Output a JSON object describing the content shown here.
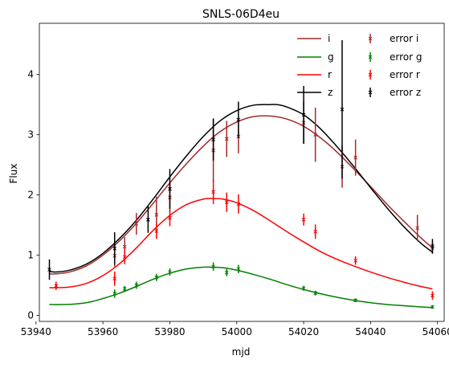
{
  "chart_data": {
    "type": "line",
    "title": "SNLS-06D4eu",
    "xlabel": "mjd",
    "ylabel": "Flux",
    "xlim": [
      53941,
      54062
    ],
    "ylim": [
      -0.1,
      4.85
    ],
    "xticks": [
      53940,
      53960,
      53980,
      54000,
      54020,
      54040,
      54060
    ],
    "yticks": [
      0,
      1,
      2,
      3,
      4
    ],
    "grid": false,
    "legend": "top-right",
    "series": [
      {
        "name": "i",
        "color": "#a52a2a",
        "x": [
          53944,
          53946,
          53950,
          53955,
          53960,
          53965,
          53970,
          53975,
          53980,
          53985,
          53990,
          53995,
          54000,
          54005,
          54010,
          54015,
          54020,
          54025,
          54030,
          54035,
          54040,
          54045,
          54050,
          54055,
          54058.5
        ],
        "y": [
          0.69,
          0.69,
          0.72,
          0.82,
          1.0,
          1.24,
          1.53,
          1.86,
          2.2,
          2.52,
          2.81,
          3.05,
          3.21,
          3.3,
          3.31,
          3.26,
          3.14,
          2.95,
          2.71,
          2.43,
          2.14,
          1.84,
          1.56,
          1.29,
          1.12
        ]
      },
      {
        "name": "g",
        "color": "#008000",
        "x": [
          53944,
          53948,
          53952,
          53956,
          53960,
          53965,
          53970,
          53975,
          53980,
          53985,
          53990,
          53993,
          53996,
          54000,
          54005,
          54010,
          54015,
          54020,
          54025,
          54030,
          54035,
          54040,
          54045,
          54050,
          54055,
          54058.5
        ],
        "y": [
          0.18,
          0.18,
          0.19,
          0.22,
          0.28,
          0.37,
          0.48,
          0.6,
          0.7,
          0.77,
          0.8,
          0.8,
          0.79,
          0.75,
          0.68,
          0.6,
          0.51,
          0.43,
          0.36,
          0.3,
          0.25,
          0.21,
          0.18,
          0.16,
          0.14,
          0.13
        ]
      },
      {
        "name": "r",
        "color": "#ff0000",
        "x": [
          53944,
          53946,
          53950,
          53955,
          53960,
          53965,
          53970,
          53975,
          53980,
          53985,
          53990,
          53993,
          53996,
          54000,
          54005,
          54010,
          54015,
          54020,
          54025,
          54030,
          54035,
          54040,
          54045,
          54050,
          54055,
          54058.5
        ],
        "y": [
          0.46,
          0.46,
          0.47,
          0.53,
          0.66,
          0.86,
          1.12,
          1.41,
          1.66,
          1.84,
          1.93,
          1.94,
          1.93,
          1.87,
          1.74,
          1.57,
          1.39,
          1.22,
          1.06,
          0.93,
          0.82,
          0.72,
          0.63,
          0.55,
          0.48,
          0.44
        ]
      },
      {
        "name": "z",
        "color": "#000000",
        "x": [
          53944,
          53946,
          53950,
          53955,
          53960,
          53965,
          53970,
          53975,
          53980,
          53985,
          53990,
          53995,
          54000,
          54005,
          54010,
          54012,
          54015,
          54020,
          54025,
          54030,
          54035,
          54040,
          54045,
          54050,
          54055,
          54058.5
        ],
        "y": [
          0.73,
          0.72,
          0.75,
          0.85,
          1.03,
          1.28,
          1.58,
          1.93,
          2.3,
          2.65,
          2.97,
          3.23,
          3.4,
          3.49,
          3.5,
          3.5,
          3.46,
          3.33,
          3.1,
          2.8,
          2.47,
          2.12,
          1.78,
          1.47,
          1.2,
          1.05
        ]
      }
    ],
    "error_series": [
      {
        "name": "error i",
        "color": "#a52a2a",
        "points": [
          {
            "x": 53963.5,
            "y": 0.99,
            "err": 0.18
          },
          {
            "x": 53966.5,
            "y": 1.14,
            "err": 0.16
          },
          {
            "x": 53970,
            "y": 1.52,
            "err": 0.18
          },
          {
            "x": 53976,
            "y": 1.67,
            "err": 0.3
          },
          {
            "x": 53980,
            "y": 1.96,
            "err": 0.24
          },
          {
            "x": 53993,
            "y": 2.74,
            "err": 0.52
          },
          {
            "x": 53997,
            "y": 2.93,
            "err": 0.3
          },
          {
            "x": 54000.5,
            "y": 2.97,
            "err": 0.28
          },
          {
            "x": 54020,
            "y": 3.2,
            "err": 0.35
          },
          {
            "x": 54023.5,
            "y": 3.0,
            "err": 0.45
          },
          {
            "x": 54031.5,
            "y": 2.47,
            "err": 0.35
          },
          {
            "x": 54035.5,
            "y": 2.62,
            "err": 0.3
          },
          {
            "x": 54054,
            "y": 1.45,
            "err": 0.22
          },
          {
            "x": 54058.5,
            "y": 1.12,
            "err": 0.1
          }
        ]
      },
      {
        "name": "error g",
        "color": "#008000",
        "points": [
          {
            "x": 53963.5,
            "y": 0.36,
            "err": 0.07
          },
          {
            "x": 53966.5,
            "y": 0.44,
            "err": 0.05
          },
          {
            "x": 53970,
            "y": 0.5,
            "err": 0.06
          },
          {
            "x": 53976,
            "y": 0.63,
            "err": 0.06
          },
          {
            "x": 53980,
            "y": 0.72,
            "err": 0.06
          },
          {
            "x": 53993,
            "y": 0.81,
            "err": 0.07
          },
          {
            "x": 53997,
            "y": 0.71,
            "err": 0.06
          },
          {
            "x": 54000.5,
            "y": 0.77,
            "err": 0.07
          },
          {
            "x": 54020,
            "y": 0.45,
            "err": 0.04
          },
          {
            "x": 54023.5,
            "y": 0.37,
            "err": 0.04
          },
          {
            "x": 54035.5,
            "y": 0.25,
            "err": 0.03
          },
          {
            "x": 54058.5,
            "y": 0.14,
            "err": 0.03
          }
        ]
      },
      {
        "name": "error r",
        "color": "#ff0000",
        "points": [
          {
            "x": 53946,
            "y": 0.49,
            "err": 0.07
          },
          {
            "x": 53963.5,
            "y": 0.61,
            "err": 0.12
          },
          {
            "x": 53966.5,
            "y": 0.97,
            "err": 0.12
          },
          {
            "x": 53976,
            "y": 1.4,
            "err": 0.13
          },
          {
            "x": 53980,
            "y": 1.62,
            "err": 0.14
          },
          {
            "x": 53993,
            "y": 2.05,
            "err": 0.2
          },
          {
            "x": 53997,
            "y": 1.88,
            "err": 0.16
          },
          {
            "x": 54000.5,
            "y": 1.85,
            "err": 0.16
          },
          {
            "x": 54020,
            "y": 1.59,
            "err": 0.1
          },
          {
            "x": 54023.5,
            "y": 1.39,
            "err": 0.12
          },
          {
            "x": 54035.5,
            "y": 0.91,
            "err": 0.07
          },
          {
            "x": 54058.5,
            "y": 0.33,
            "err": 0.07
          }
        ]
      },
      {
        "name": "error z",
        "color": "#000000",
        "points": [
          {
            "x": 53944,
            "y": 0.76,
            "err": 0.17
          },
          {
            "x": 53963.5,
            "y": 1.11,
            "err": 0.27
          },
          {
            "x": 53973.5,
            "y": 1.59,
            "err": 0.22
          },
          {
            "x": 53980,
            "y": 2.1,
            "err": 0.33
          },
          {
            "x": 53993,
            "y": 2.92,
            "err": 0.35
          },
          {
            "x": 54000.5,
            "y": 3.25,
            "err": 0.3
          },
          {
            "x": 54020,
            "y": 3.33,
            "err": 0.48
          },
          {
            "x": 54031.5,
            "y": 3.42,
            "err": 1.15
          },
          {
            "x": 54058.5,
            "y": 1.15,
            "err": 0.12
          }
        ]
      }
    ]
  }
}
